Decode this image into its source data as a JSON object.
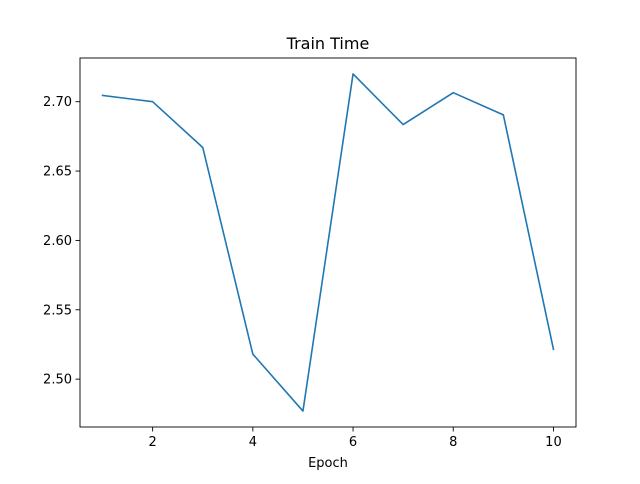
{
  "chart_data": {
    "type": "line",
    "title": "Train Time",
    "xlabel": "Epoch",
    "ylabel": "",
    "xlim": [
      0.55,
      10.45
    ],
    "ylim": [
      2.4655,
      2.7315
    ],
    "xticks": [
      2,
      4,
      6,
      8,
      10
    ],
    "yticks": [
      2.5,
      2.55,
      2.6,
      2.65,
      2.7
    ],
    "ytick_decimals": 2,
    "grid": false,
    "legend": "none",
    "series": [
      {
        "color": "#1f77b4",
        "x": [
          1,
          2,
          3,
          4,
          5,
          6,
          7,
          8,
          9,
          10
        ],
        "values": [
          2.7045,
          2.7,
          2.667,
          2.518,
          2.477,
          2.72,
          2.6835,
          2.7065,
          2.6905,
          2.5215
        ]
      }
    ]
  }
}
